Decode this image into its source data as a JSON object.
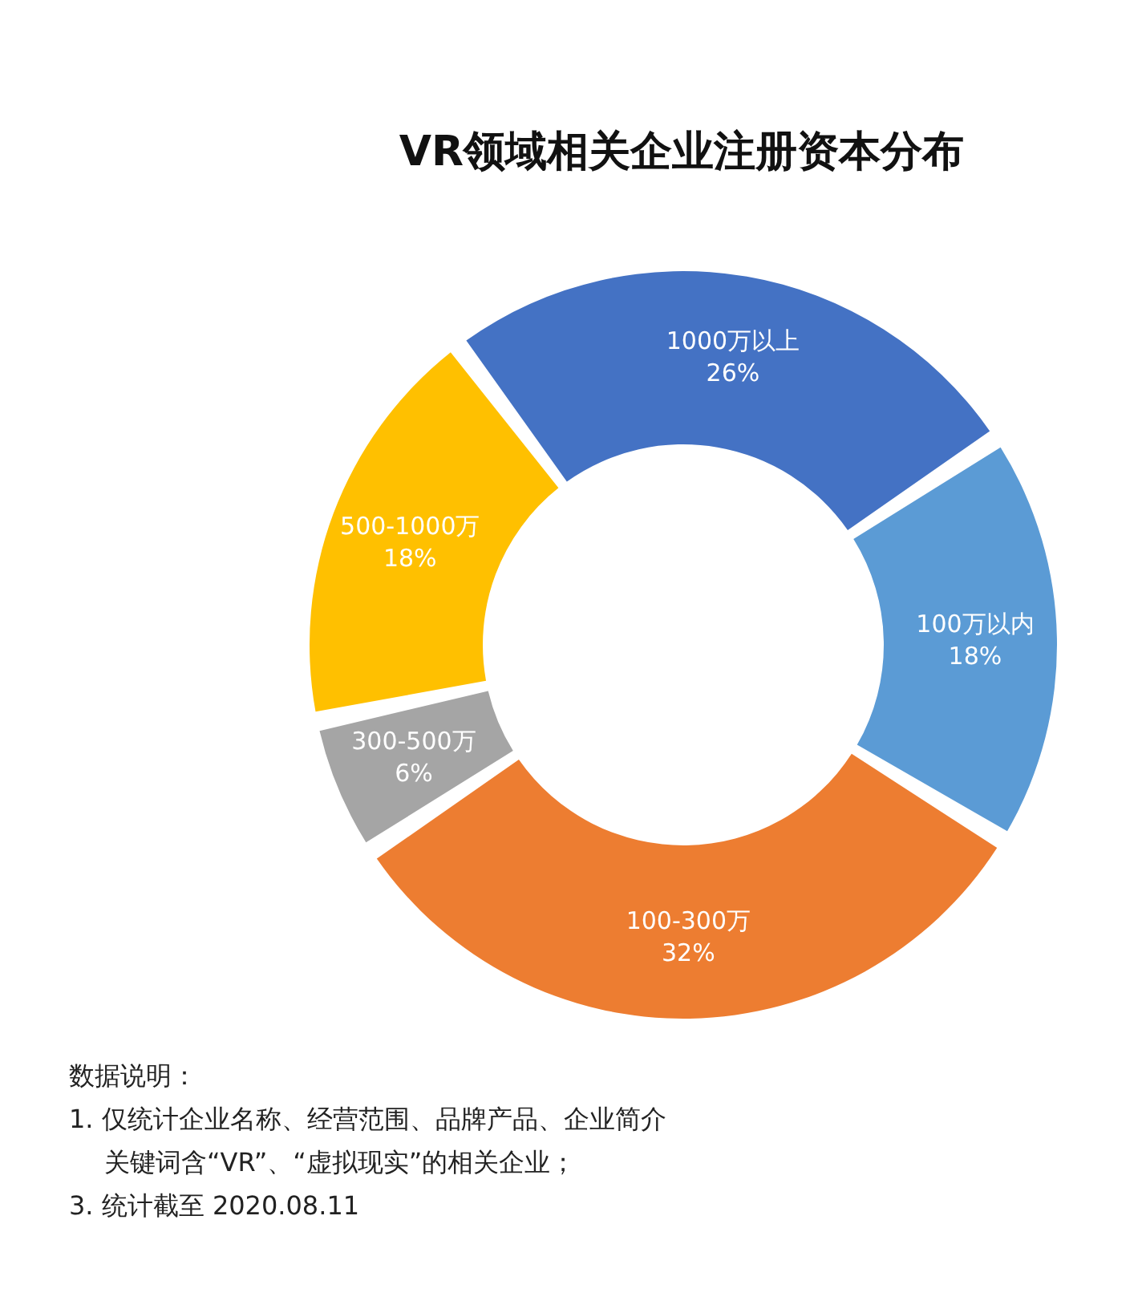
{
  "chart_data": {
    "type": "donut",
    "title": "VR领域相关企业注册资本分布",
    "categories": [
      "1000万以上",
      "100万以内",
      "100-300万",
      "300-500万",
      "500-1000万"
    ],
    "values": [
      26,
      18,
      32,
      6,
      18
    ],
    "value_labels": [
      "26%",
      "18%",
      "32%",
      "6%",
      "18%"
    ],
    "colors": [
      "#4472c4",
      "#5b9bd5",
      "#ed7d31",
      "#a5a5a5",
      "#ffc000"
    ],
    "annotations": [
      "数据说明：",
      "1. 仅统计企业名称、经营范围、品牌产品、企业简介关键词含“VR”、“虚拟现实”的相关企业；",
      "3. 统计截至 2020.08.11"
    ]
  }
}
